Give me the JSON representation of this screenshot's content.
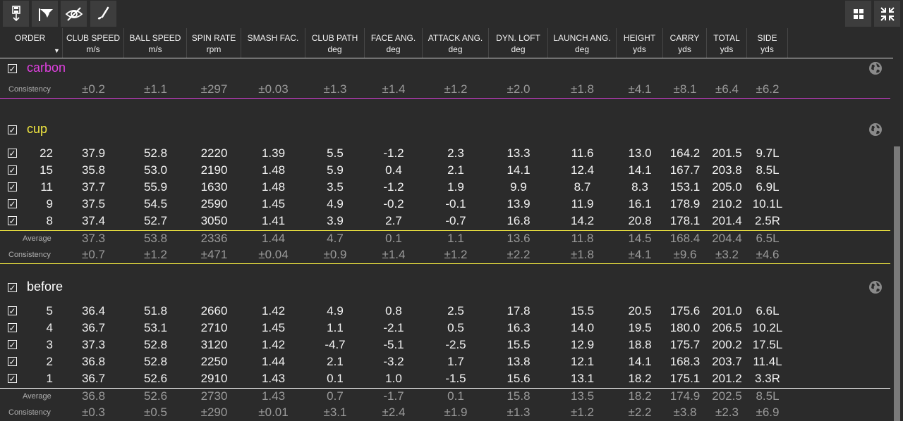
{
  "toolbar": {
    "left": [
      {
        "icon": "floppy-down-icon"
      },
      {
        "icon": "flag-filter-icon"
      },
      {
        "icon": "eye-hidden-icon"
      },
      {
        "icon": "golf-club-icon"
      }
    ],
    "right": [
      {
        "icon": "grid-view-icon"
      },
      {
        "icon": "collapse-icon"
      }
    ]
  },
  "columns": [
    {
      "key": "order",
      "label": "ORDER",
      "unit": ""
    },
    {
      "key": "club_speed",
      "label": "CLUB SPEED",
      "unit": "m/s"
    },
    {
      "key": "ball_speed",
      "label": "BALL SPEED",
      "unit": "m/s"
    },
    {
      "key": "spin_rate",
      "label": "SPIN RATE",
      "unit": "rpm"
    },
    {
      "key": "smash",
      "label": "SMASH FAC.",
      "unit": ""
    },
    {
      "key": "club_path",
      "label": "CLUB PATH",
      "unit": "deg"
    },
    {
      "key": "face_ang",
      "label": "FACE ANG.",
      "unit": "deg"
    },
    {
      "key": "attack_ang",
      "label": "ATTACK ANG.",
      "unit": "deg"
    },
    {
      "key": "dyn_loft",
      "label": "DYN. LOFT",
      "unit": "deg"
    },
    {
      "key": "launch_ang",
      "label": "LAUNCH ANG.",
      "unit": "deg"
    },
    {
      "key": "height",
      "label": "HEIGHT",
      "unit": "yds"
    },
    {
      "key": "carry",
      "label": "CARRY",
      "unit": "yds"
    },
    {
      "key": "total",
      "label": "TOTAL",
      "unit": "yds"
    },
    {
      "key": "side",
      "label": "SIDE",
      "unit": "yds"
    }
  ],
  "groups": [
    {
      "name": "carbon",
      "color": "#e040e0",
      "rows": [],
      "average": null,
      "consistency": {
        "label": "Consistency",
        "values": [
          "",
          "±0.2",
          "±1.1",
          "±297",
          "±0.03",
          "±1.3",
          "±1.4",
          "±1.2",
          "±2.0",
          "±1.8",
          "±4.1",
          "±8.1",
          "±6.4",
          "±6.2"
        ]
      }
    },
    {
      "name": "cup",
      "color": "#f0e640",
      "rows": [
        [
          "22",
          "37.9",
          "52.8",
          "2220",
          "1.39",
          "5.5",
          "-1.2",
          "2.3",
          "13.3",
          "11.6",
          "13.0",
          "164.2",
          "201.5",
          "9.7L"
        ],
        [
          "15",
          "35.8",
          "53.0",
          "2190",
          "1.48",
          "5.9",
          "0.4",
          "2.1",
          "14.1",
          "12.4",
          "14.1",
          "167.7",
          "203.8",
          "8.5L"
        ],
        [
          "11",
          "37.7",
          "55.9",
          "1630",
          "1.48",
          "3.5",
          "-1.2",
          "1.9",
          "9.9",
          "8.7",
          "8.3",
          "153.1",
          "205.0",
          "6.9L"
        ],
        [
          "9",
          "37.5",
          "54.5",
          "2590",
          "1.45",
          "4.9",
          "-0.2",
          "-0.1",
          "13.9",
          "11.9",
          "16.1",
          "178.9",
          "210.2",
          "10.1L"
        ],
        [
          "8",
          "37.4",
          "52.7",
          "3050",
          "1.41",
          "3.9",
          "2.7",
          "-0.7",
          "16.8",
          "14.2",
          "20.8",
          "178.1",
          "201.4",
          "2.5R"
        ]
      ],
      "average": {
        "label": "Average",
        "values": [
          "",
          "37.3",
          "53.8",
          "2336",
          "1.44",
          "4.7",
          "0.1",
          "1.1",
          "13.6",
          "11.8",
          "14.5",
          "168.4",
          "204.4",
          "6.5L"
        ]
      },
      "consistency": {
        "label": "Consistency",
        "values": [
          "",
          "±0.7",
          "±1.2",
          "±471",
          "±0.04",
          "±0.9",
          "±1.4",
          "±1.2",
          "±2.2",
          "±1.8",
          "±4.1",
          "±9.6",
          "±3.2",
          "±4.6"
        ]
      }
    },
    {
      "name": "before",
      "color": "#ffffff",
      "rows": [
        [
          "5",
          "36.4",
          "51.8",
          "2660",
          "1.42",
          "4.9",
          "0.8",
          "2.5",
          "17.8",
          "15.5",
          "20.5",
          "175.6",
          "201.0",
          "6.6L"
        ],
        [
          "4",
          "36.7",
          "53.1",
          "2710",
          "1.45",
          "1.1",
          "-2.1",
          "0.5",
          "16.3",
          "14.0",
          "19.5",
          "180.0",
          "206.5",
          "10.2L"
        ],
        [
          "3",
          "37.3",
          "52.8",
          "3120",
          "1.42",
          "-4.7",
          "-5.1",
          "-2.5",
          "15.5",
          "12.9",
          "18.8",
          "175.7",
          "200.2",
          "17.5L"
        ],
        [
          "2",
          "36.8",
          "52.8",
          "2250",
          "1.44",
          "2.1",
          "-3.2",
          "1.7",
          "13.8",
          "12.1",
          "14.1",
          "168.3",
          "203.7",
          "11.4L"
        ],
        [
          "1",
          "36.7",
          "52.6",
          "2910",
          "1.43",
          "0.1",
          "1.0",
          "-1.5",
          "15.6",
          "13.1",
          "18.2",
          "175.1",
          "201.2",
          "3.3R"
        ]
      ],
      "average": {
        "label": "Average",
        "values": [
          "",
          "36.8",
          "52.6",
          "2730",
          "1.43",
          "0.7",
          "-1.7",
          "0.1",
          "15.8",
          "13.5",
          "18.2",
          "174.9",
          "202.5",
          "8.5L"
        ]
      },
      "consistency": {
        "label": "Consistency",
        "values": [
          "",
          "±0.3",
          "±0.5",
          "±290",
          "±0.01",
          "±3.1",
          "±2.4",
          "±1.9",
          "±1.3",
          "±1.2",
          "±2.2",
          "±3.8",
          "±2.3",
          "±6.9"
        ]
      }
    }
  ]
}
